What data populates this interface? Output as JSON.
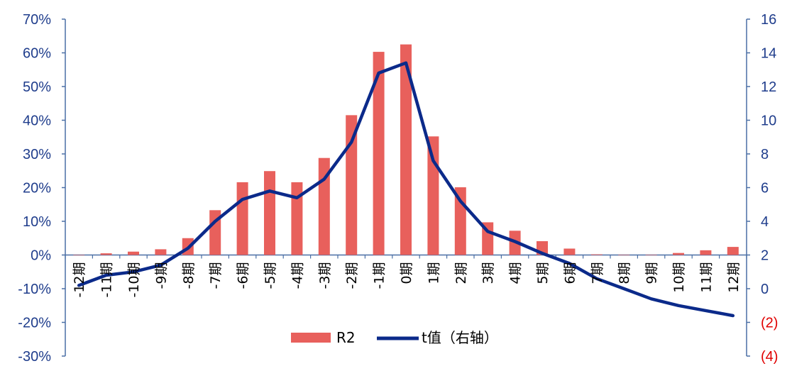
{
  "chart_data": {
    "type": "bar+line",
    "categories": [
      "-12期",
      "-11期",
      "-10期",
      "-9期",
      "-8期",
      "-7期",
      "-6期",
      "-5期",
      "-4期",
      "-3期",
      "-2期",
      "-1期",
      "0期",
      "1期",
      "2期",
      "3期",
      "4期",
      "5期",
      "6期",
      "7期",
      "8期",
      "9期",
      "10期",
      "11期",
      "12期"
    ],
    "series": [
      {
        "name": "R2",
        "kind": "bar",
        "axis": "left",
        "values": [
          0.0,
          0.005,
          0.01,
          0.017,
          0.05,
          0.133,
          0.216,
          0.249,
          0.216,
          0.288,
          0.415,
          0.603,
          0.625,
          0.352,
          0.201,
          0.097,
          0.072,
          0.041,
          0.019,
          0.002,
          0.001,
          0.001,
          0.006,
          0.014,
          0.024
        ]
      },
      {
        "name": "t值（右轴）",
        "kind": "line",
        "axis": "right",
        "values": [
          0.2,
          0.8,
          1.0,
          1.4,
          2.4,
          4.0,
          5.3,
          5.8,
          5.4,
          6.5,
          8.7,
          12.8,
          13.4,
          7.6,
          5.2,
          3.4,
          2.8,
          2.1,
          1.5,
          0.6,
          0.0,
          -0.6,
          -1.0,
          -1.3,
          -1.6
        ]
      }
    ],
    "left_axis": {
      "ylim": [
        -0.3,
        0.7
      ],
      "ticks": [
        "-30%",
        "-20%",
        "-10%",
        "0%",
        "10%",
        "20%",
        "30%",
        "40%",
        "50%",
        "60%",
        "70%"
      ]
    },
    "right_axis": {
      "ylim": [
        -4,
        16
      ],
      "ticks": [
        "(4)",
        "(2)",
        "0",
        "2",
        "4",
        "6",
        "8",
        "10",
        "12",
        "14",
        "16"
      ]
    },
    "legend": {
      "position": "bottom-center",
      "items": [
        "R2",
        "t值（右轴）"
      ]
    },
    "colors": {
      "bar": "#e8605c",
      "line": "#0b2a8a",
      "axis": "#4a6fa5",
      "tick_text": "#1f3d8c",
      "negative_tick_text": "#e00000"
    }
  }
}
